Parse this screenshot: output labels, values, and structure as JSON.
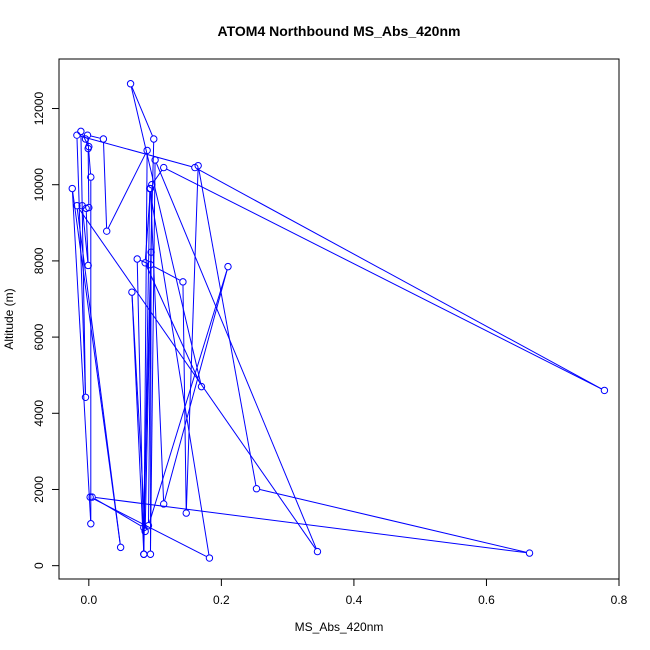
{
  "chart_data": {
    "type": "line",
    "title": "ATOM4 Northbound MS_Abs_420nm",
    "xlabel": "MS_Abs_420nm",
    "ylabel": "Altitude (m)",
    "xlim": [
      -0.045,
      0.8
    ],
    "ylim": [
      -350,
      13300
    ],
    "x_ticks": [
      "0.0",
      "0.2",
      "0.4",
      "0.6",
      "0.8"
    ],
    "x_tick_values": [
      0.0,
      0.2,
      0.4,
      0.6,
      0.8
    ],
    "y_ticks": [
      "0",
      "2000",
      "4000",
      "6000",
      "8000",
      "10000",
      "12000"
    ],
    "y_tick_values": [
      0,
      2000,
      4000,
      6000,
      8000,
      10000,
      12000
    ],
    "grid": false,
    "line_color": "#0000ff",
    "marker": "open-circle",
    "series": [
      {
        "points": [
          [
            0.002,
            1800
          ],
          [
            0.182,
            200
          ],
          [
            0.092,
            9900
          ],
          [
            0.083,
            300
          ],
          [
            0.088,
            10900
          ],
          [
            0.027,
            8780
          ],
          [
            0.022,
            11200
          ],
          [
            -0.002,
            11300
          ],
          [
            0.003,
            10200
          ],
          [
            0.003,
            1100
          ],
          [
            -0.025,
            9900
          ],
          [
            0.048,
            480
          ],
          [
            -0.018,
            9450
          ],
          [
            0.345,
            370
          ],
          [
            0.1,
            10650
          ],
          [
            0.093,
            300
          ],
          [
            0.094,
            8230
          ],
          [
            0.085,
            900
          ],
          [
            0.065,
            7180
          ],
          [
            0.083,
            300
          ],
          [
            0.073,
            8050
          ],
          [
            0.093,
            7900
          ],
          [
            0.142,
            7450
          ],
          [
            0.147,
            1380
          ],
          [
            0.165,
            10500
          ],
          [
            0.253,
            2020
          ],
          [
            0.665,
            330
          ],
          [
            0.005,
            1800
          ],
          [
            0.083,
            1000
          ],
          [
            0.098,
            11200
          ],
          [
            0.063,
            12650
          ],
          [
            0.17,
            4700
          ],
          [
            0.085,
            7950
          ],
          [
            0.093,
            9900
          ],
          [
            0.113,
            1620
          ],
          [
            0.21,
            7850
          ],
          [
            0.09,
            1050
          ],
          [
            0.095,
            10000
          ],
          [
            0.113,
            10450
          ],
          [
            0.778,
            4600
          ],
          [
            0.16,
            10450
          ],
          [
            -0.018,
            11300
          ],
          [
            -0.005,
            4420
          ],
          [
            -0.012,
            11400
          ],
          [
            0.0,
            11000
          ],
          [
            -0.005,
            11200
          ],
          [
            -0.001,
            10950
          ],
          [
            0.0,
            9400
          ],
          [
            -0.01,
            9450
          ],
          [
            -0.001,
            7880
          ],
          [
            -0.004,
            9380
          ]
        ]
      }
    ]
  }
}
